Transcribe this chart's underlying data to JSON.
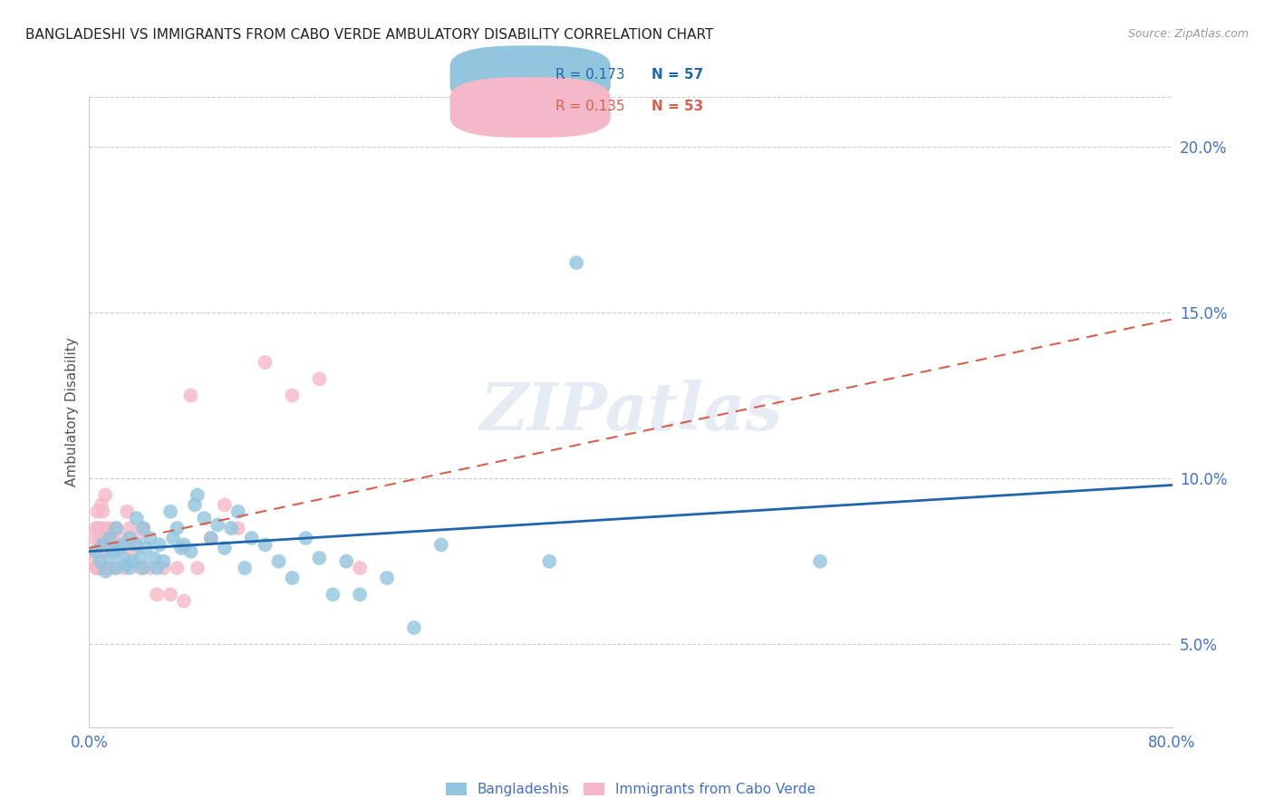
{
  "title": "BANGLADESHI VS IMMIGRANTS FROM CABO VERDE AMBULATORY DISABILITY CORRELATION CHART",
  "source": "Source: ZipAtlas.com",
  "ylabel": "Ambulatory Disability",
  "xlim": [
    0.0,
    0.8
  ],
  "ylim": [
    0.025,
    0.215
  ],
  "yticks": [
    0.05,
    0.1,
    0.15,
    0.2
  ],
  "ytick_labels": [
    "5.0%",
    "10.0%",
    "15.0%",
    "20.0%"
  ],
  "xticks": [
    0.0,
    0.2,
    0.4,
    0.6,
    0.8
  ],
  "xtick_labels": [
    "0.0%",
    "",
    "",
    "",
    "80.0%"
  ],
  "blue_color": "#92c5de",
  "pink_color": "#f4b8c8",
  "blue_line_color": "#2166ac",
  "pink_line_color": "#d6604d",
  "axis_color": "#4472c4",
  "watermark_text": "ZIPatlas",
  "legend_r_blue": "R = 0.173",
  "legend_n_blue": "N = 57",
  "legend_r_pink": "R = 0.135",
  "legend_n_pink": "N = 53",
  "blue_label": "Bangladeshis",
  "pink_label": "Immigrants from Cabo Verde",
  "blue_scatter_x": [
    0.005,
    0.008,
    0.01,
    0.012,
    0.015,
    0.015,
    0.018,
    0.02,
    0.02,
    0.022,
    0.025,
    0.025,
    0.028,
    0.03,
    0.03,
    0.032,
    0.035,
    0.035,
    0.038,
    0.04,
    0.04,
    0.042,
    0.045,
    0.048,
    0.05,
    0.052,
    0.055,
    0.06,
    0.062,
    0.065,
    0.068,
    0.07,
    0.075,
    0.078,
    0.08,
    0.085,
    0.09,
    0.095,
    0.1,
    0.105,
    0.11,
    0.115,
    0.12,
    0.13,
    0.14,
    0.15,
    0.16,
    0.17,
    0.18,
    0.19,
    0.2,
    0.22,
    0.24,
    0.26,
    0.34,
    0.36,
    0.54
  ],
  "blue_scatter_y": [
    0.078,
    0.075,
    0.08,
    0.072,
    0.076,
    0.082,
    0.078,
    0.073,
    0.085,
    0.079,
    0.076,
    0.08,
    0.074,
    0.073,
    0.082,
    0.075,
    0.08,
    0.088,
    0.076,
    0.073,
    0.085,
    0.079,
    0.082,
    0.076,
    0.073,
    0.08,
    0.075,
    0.09,
    0.082,
    0.085,
    0.079,
    0.08,
    0.078,
    0.092,
    0.095,
    0.088,
    0.082,
    0.086,
    0.079,
    0.085,
    0.09,
    0.073,
    0.082,
    0.08,
    0.075,
    0.07,
    0.082,
    0.076,
    0.065,
    0.075,
    0.065,
    0.07,
    0.055,
    0.08,
    0.075,
    0.165,
    0.075
  ],
  "pink_scatter_x": [
    0.003,
    0.004,
    0.004,
    0.005,
    0.005,
    0.006,
    0.006,
    0.006,
    0.007,
    0.007,
    0.008,
    0.008,
    0.009,
    0.009,
    0.01,
    0.01,
    0.01,
    0.011,
    0.011,
    0.012,
    0.012,
    0.013,
    0.014,
    0.015,
    0.015,
    0.016,
    0.017,
    0.018,
    0.02,
    0.022,
    0.024,
    0.026,
    0.028,
    0.03,
    0.032,
    0.035,
    0.038,
    0.04,
    0.045,
    0.05,
    0.055,
    0.06,
    0.065,
    0.07,
    0.075,
    0.08,
    0.09,
    0.1,
    0.11,
    0.13,
    0.15,
    0.17,
    0.2
  ],
  "pink_scatter_y": [
    0.075,
    0.078,
    0.082,
    0.073,
    0.085,
    0.078,
    0.09,
    0.073,
    0.078,
    0.085,
    0.073,
    0.082,
    0.078,
    0.092,
    0.073,
    0.08,
    0.09,
    0.073,
    0.085,
    0.078,
    0.095,
    0.078,
    0.082,
    0.073,
    0.085,
    0.078,
    0.082,
    0.073,
    0.085,
    0.078,
    0.082,
    0.073,
    0.09,
    0.085,
    0.078,
    0.082,
    0.073,
    0.085,
    0.073,
    0.065,
    0.073,
    0.065,
    0.073,
    0.063,
    0.125,
    0.073,
    0.082,
    0.092,
    0.085,
    0.135,
    0.125,
    0.13,
    0.073
  ],
  "blue_trend_x": [
    0.0,
    0.8
  ],
  "blue_trend_y": [
    0.078,
    0.098
  ],
  "pink_trend_x": [
    0.0,
    0.8
  ],
  "pink_trend_y": [
    0.079,
    0.148
  ]
}
